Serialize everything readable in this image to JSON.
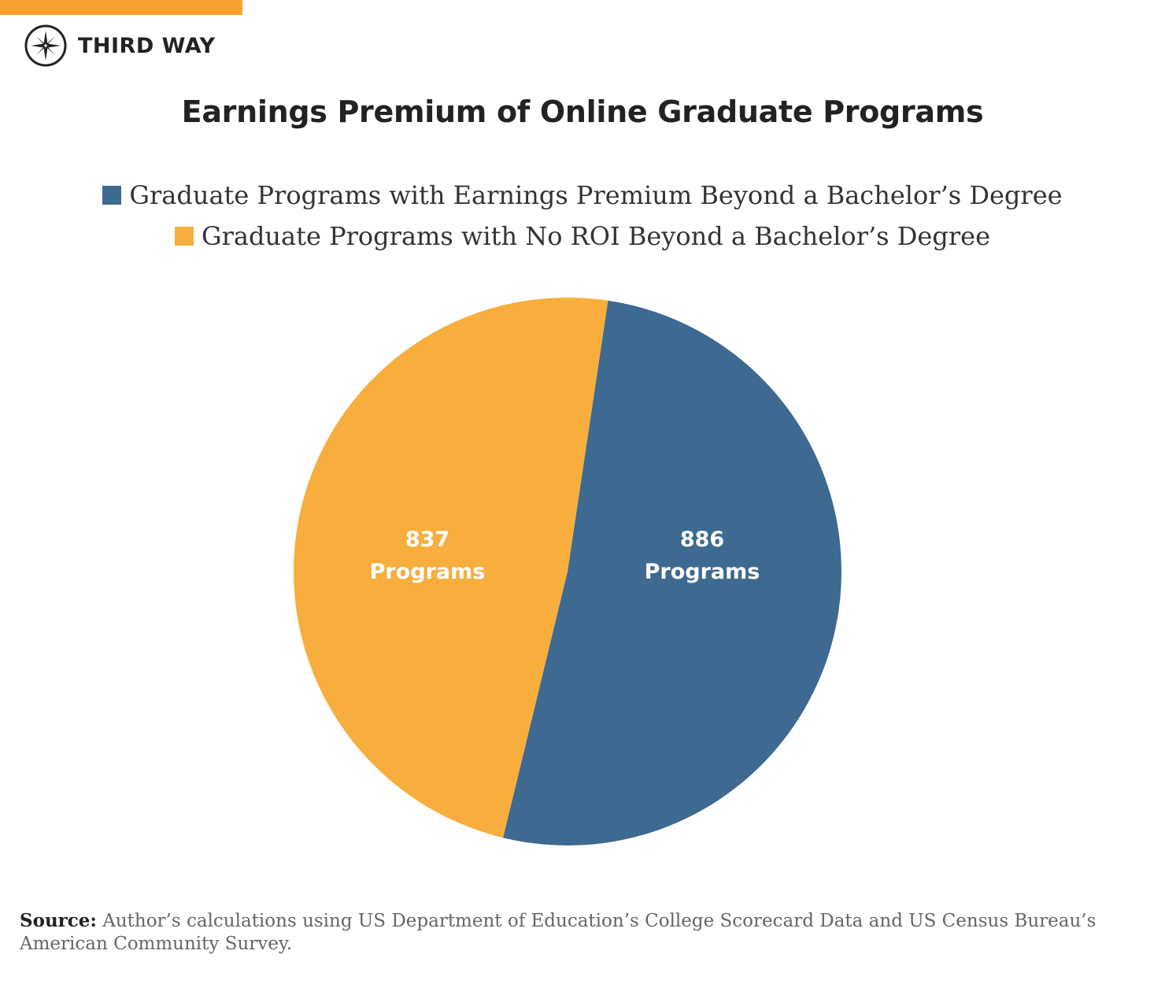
{
  "brand": {
    "name": "THIRD WAY",
    "accent_color": "#F9A12E"
  },
  "chart_data": {
    "type": "pie",
    "title": "Earnings Premium of Online Graduate Programs",
    "categories": [
      "Graduate Programs with Earnings Premium Beyond a Bachelor’s Degree",
      "Graduate Programs with No ROI Beyond a Bachelor’s Degree"
    ],
    "values": [
      886,
      837
    ],
    "colors": [
      "#3E6991",
      "#F8AE3D"
    ],
    "data_labels": [
      {
        "value": "886",
        "unit": "Programs"
      },
      {
        "value": "837",
        "unit": "Programs"
      }
    ],
    "legend_position": "top",
    "start_angle_deg": 8.5
  },
  "legend": [
    {
      "label": "Graduate Programs with Earnings Premium Beyond a Bachelor’s Degree",
      "color": "#3E6991"
    },
    {
      "label": "Graduate Programs with No ROI Beyond a Bachelor’s Degree",
      "color": "#F8AE3D"
    }
  ],
  "source": {
    "label": "Source:",
    "text": " Author’s calculations using US Department of Education’s College Scorecard Data and US Census Bureau’s American Community Survey."
  }
}
